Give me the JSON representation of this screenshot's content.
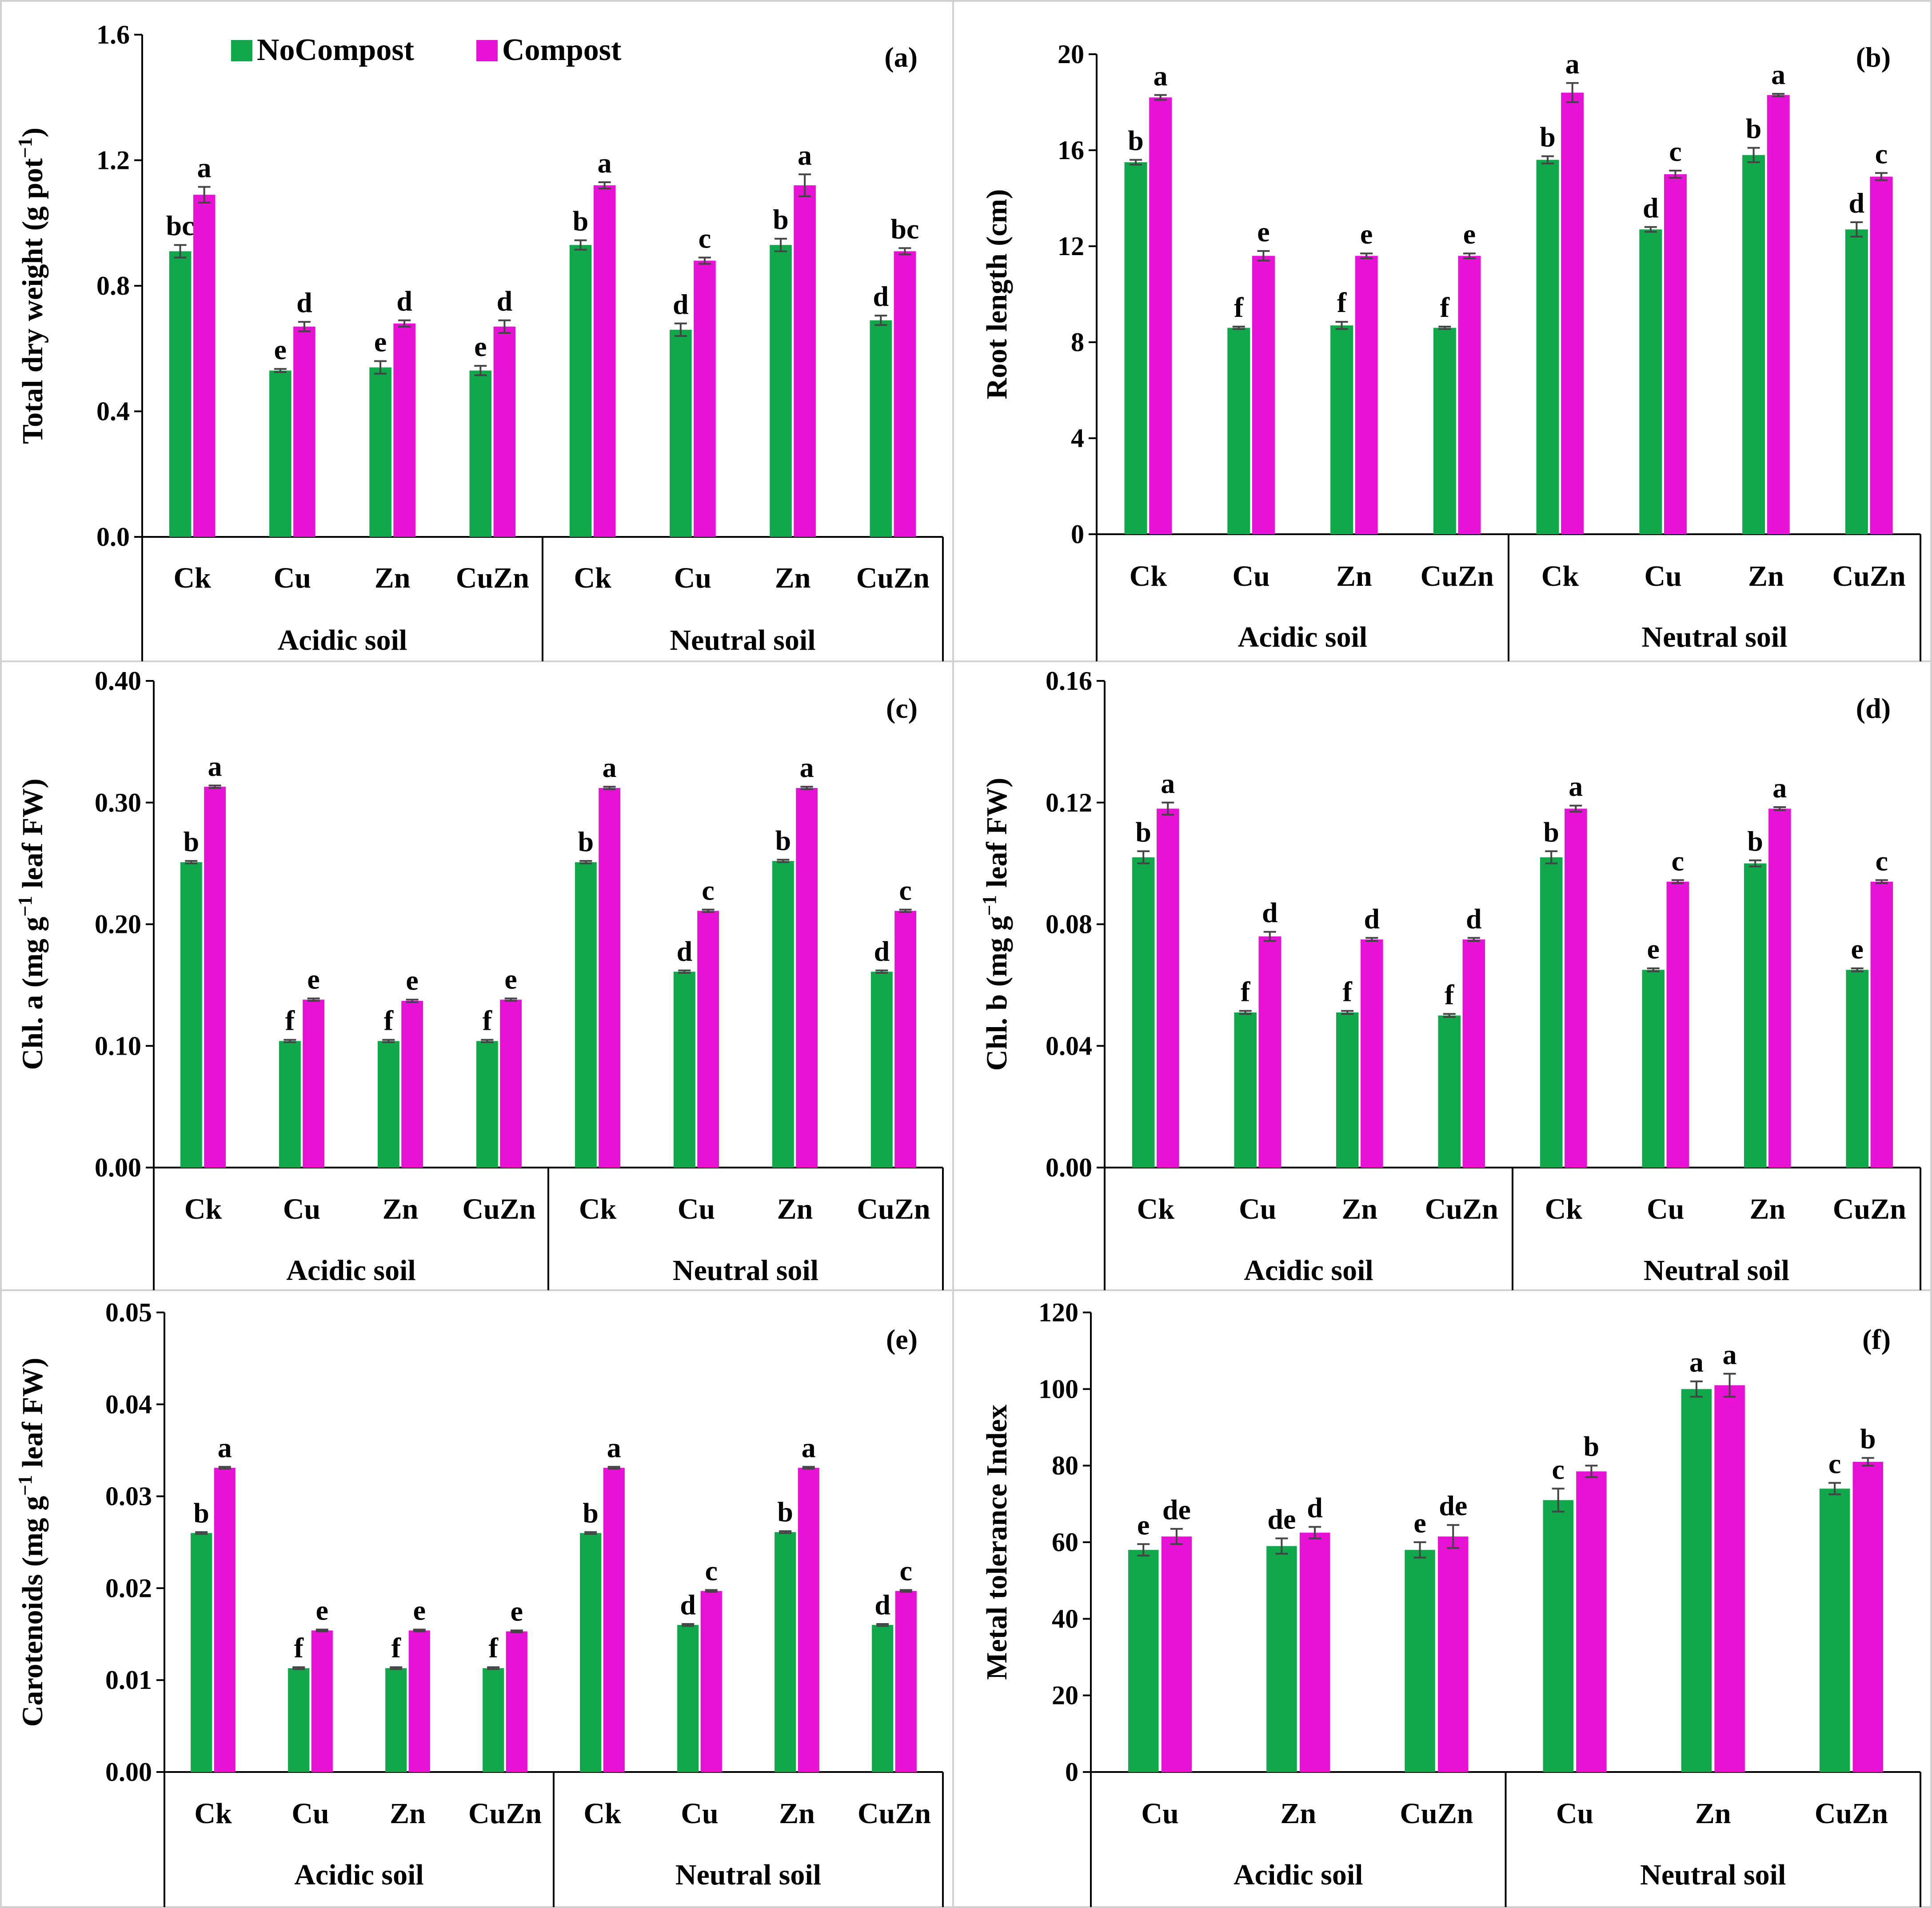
{
  "legend": {
    "series": [
      {
        "name": "NoCompost",
        "color": "#11a84b"
      },
      {
        "name": "Compost",
        "color": "#e812d6"
      }
    ]
  },
  "chart_data": [
    {
      "id": "a",
      "tag": "(a)",
      "type": "bar",
      "ylabel_parts": [
        "Total dry weight (g pot",
        "−1",
        ")"
      ],
      "yticks": [
        "0.0",
        "0.4",
        "0.8",
        "1.2",
        "1.6"
      ],
      "ylim": [
        0,
        1.6
      ],
      "groups": [
        {
          "label": "Acidic soil",
          "categories": [
            "Ck",
            "Cu",
            "Zn",
            "CuZn"
          ]
        },
        {
          "label": "Neutral soil",
          "categories": [
            "Ck",
            "Cu",
            "Zn",
            "CuZn"
          ]
        }
      ],
      "series": [
        {
          "name": "NoCompost",
          "values": [
            0.91,
            0.53,
            0.54,
            0.53,
            0.93,
            0.66,
            0.93,
            0.69
          ],
          "errors": [
            0.02,
            0.005,
            0.02,
            0.015,
            0.015,
            0.02,
            0.02,
            0.015
          ],
          "letters": [
            "bc",
            "e",
            "e",
            "e",
            "b",
            "d",
            "b",
            "d"
          ]
        },
        {
          "name": "Compost",
          "values": [
            1.09,
            0.67,
            0.68,
            0.67,
            1.12,
            0.88,
            1.12,
            0.91
          ],
          "errors": [
            0.025,
            0.015,
            0.01,
            0.02,
            0.01,
            0.01,
            0.035,
            0.01
          ],
          "letters": [
            "a",
            "d",
            "d",
            "d",
            "a",
            "c",
            "a",
            "bc"
          ]
        }
      ]
    },
    {
      "id": "b",
      "tag": "(b)",
      "type": "bar",
      "ylabel_parts": [
        "Root length (cm)"
      ],
      "yticks": [
        "0",
        "4",
        "8",
        "12",
        "16",
        "20"
      ],
      "ylim": [
        0,
        20
      ],
      "groups": [
        {
          "label": "Acidic soil",
          "categories": [
            "Ck",
            "Cu",
            "Zn",
            "CuZn"
          ]
        },
        {
          "label": "Neutral soil",
          "categories": [
            "Ck",
            "Cu",
            "Zn",
            "CuZn"
          ]
        }
      ],
      "series": [
        {
          "name": "NoCompost",
          "values": [
            15.5,
            8.6,
            8.7,
            8.6,
            15.6,
            12.7,
            15.8,
            12.7
          ],
          "errors": [
            0.1,
            0.05,
            0.15,
            0.05,
            0.15,
            0.1,
            0.3,
            0.3
          ],
          "letters": [
            "b",
            "f",
            "f",
            "f",
            "b",
            "d",
            "b",
            "d"
          ]
        },
        {
          "name": "Compost",
          "values": [
            18.2,
            11.6,
            11.6,
            11.6,
            18.4,
            15.0,
            18.3,
            14.9
          ],
          "errors": [
            0.1,
            0.2,
            0.1,
            0.1,
            0.4,
            0.15,
            0.05,
            0.15
          ],
          "letters": [
            "a",
            "e",
            "e",
            "e",
            "a",
            "c",
            "a",
            "c"
          ]
        }
      ]
    },
    {
      "id": "c",
      "tag": "(c)",
      "type": "bar",
      "ylabel_parts": [
        "Chl. a (mg g",
        "−1",
        " leaf FW)"
      ],
      "yticks": [
        "0.00",
        "0.10",
        "0.20",
        "0.30",
        "0.40"
      ],
      "ylim": [
        0,
        0.4
      ],
      "groups": [
        {
          "label": "Acidic soil",
          "categories": [
            "Ck",
            "Cu",
            "Zn",
            "CuZn"
          ]
        },
        {
          "label": "Neutral soil",
          "categories": [
            "Ck",
            "Cu",
            "Zn",
            "CuZn"
          ]
        }
      ],
      "series": [
        {
          "name": "NoCompost",
          "values": [
            0.251,
            0.104,
            0.104,
            0.104,
            0.251,
            0.161,
            0.252,
            0.161
          ],
          "errors": [
            0.001,
            0.001,
            0.001,
            0.001,
            0.001,
            0.001,
            0.001,
            0.001
          ],
          "letters": [
            "b",
            "f",
            "f",
            "f",
            "b",
            "d",
            "b",
            "d"
          ]
        },
        {
          "name": "Compost",
          "values": [
            0.313,
            0.138,
            0.137,
            0.138,
            0.312,
            0.211,
            0.312,
            0.211
          ],
          "errors": [
            0.001,
            0.001,
            0.001,
            0.001,
            0.001,
            0.001,
            0.001,
            0.001
          ],
          "letters": [
            "a",
            "e",
            "e",
            "e",
            "a",
            "c",
            "a",
            "c"
          ]
        }
      ]
    },
    {
      "id": "d",
      "tag": "(d)",
      "type": "bar",
      "ylabel_parts": [
        "Chl. b (mg g",
        "−1",
        " leaf FW)"
      ],
      "yticks": [
        "0.00",
        "0.04",
        "0.08",
        "0.12",
        "0.16"
      ],
      "ylim": [
        0,
        0.16
      ],
      "groups": [
        {
          "label": "Acidic soil",
          "categories": [
            "Ck",
            "Cu",
            "Zn",
            "CuZn"
          ]
        },
        {
          "label": "Neutral soil",
          "categories": [
            "Ck",
            "Cu",
            "Zn",
            "CuZn"
          ]
        }
      ],
      "series": [
        {
          "name": "NoCompost",
          "values": [
            0.102,
            0.051,
            0.051,
            0.05,
            0.102,
            0.065,
            0.1,
            0.065
          ],
          "errors": [
            0.002,
            0.0005,
            0.0005,
            0.0005,
            0.002,
            0.0005,
            0.001,
            0.0005
          ],
          "letters": [
            "b",
            "f",
            "f",
            "f",
            "b",
            "e",
            "b",
            "e"
          ]
        },
        {
          "name": "Compost",
          "values": [
            0.118,
            0.076,
            0.075,
            0.075,
            0.118,
            0.094,
            0.118,
            0.094
          ],
          "errors": [
            0.002,
            0.0015,
            0.0005,
            0.0005,
            0.001,
            0.0005,
            0.0005,
            0.0005
          ],
          "letters": [
            "a",
            "d",
            "d",
            "d",
            "a",
            "c",
            "a",
            "c"
          ]
        }
      ]
    },
    {
      "id": "e",
      "tag": "(e)",
      "type": "bar",
      "ylabel_parts": [
        "Carotenoids (mg g",
        "−1",
        " leaf FW)"
      ],
      "yticks": [
        "0.00",
        "0.01",
        "0.02",
        "0.03",
        "0.04",
        "0.05"
      ],
      "ylim": [
        0,
        0.05
      ],
      "groups": [
        {
          "label": "Acidic soil",
          "categories": [
            "Ck",
            "Cu",
            "Zn",
            "CuZn"
          ]
        },
        {
          "label": "Neutral soil",
          "categories": [
            "Ck",
            "Cu",
            "Zn",
            "CuZn"
          ]
        }
      ],
      "series": [
        {
          "name": "NoCompost",
          "values": [
            0.026,
            0.0113,
            0.0113,
            0.0113,
            0.026,
            0.016,
            0.0261,
            0.016
          ],
          "errors": [
            0.0001,
            0.0001,
            0.0001,
            0.0001,
            0.0001,
            0.0001,
            0.0001,
            0.0001
          ],
          "letters": [
            "b",
            "f",
            "f",
            "f",
            "b",
            "d",
            "b",
            "d"
          ]
        },
        {
          "name": "Compost",
          "values": [
            0.0331,
            0.0154,
            0.0154,
            0.0153,
            0.0331,
            0.0197,
            0.0331,
            0.0197
          ],
          "errors": [
            0.0001,
            0.0001,
            0.0001,
            0.0001,
            0.0001,
            0.0001,
            0.0001,
            0.0001
          ],
          "letters": [
            "a",
            "e",
            "e",
            "e",
            "a",
            "c",
            "a",
            "c"
          ]
        }
      ]
    },
    {
      "id": "f",
      "tag": "(f)",
      "type": "bar",
      "ylabel_parts": [
        "Metal tolerance Index"
      ],
      "yticks": [
        "0",
        "20",
        "40",
        "60",
        "80",
        "100",
        "120"
      ],
      "ylim": [
        0,
        120
      ],
      "groups": [
        {
          "label": "Acidic soil",
          "categories": [
            "Cu",
            "Zn",
            "CuZn"
          ]
        },
        {
          "label": "Neutral soil",
          "categories": [
            "Cu",
            "Zn",
            "CuZn"
          ]
        }
      ],
      "series": [
        {
          "name": "NoCompost",
          "values": [
            58,
            59,
            58,
            71,
            100,
            74
          ],
          "errors": [
            1.5,
            2,
            2,
            3,
            2,
            1.5
          ],
          "letters": [
            "e",
            "de",
            "e",
            "c",
            "a",
            "c"
          ]
        },
        {
          "name": "Compost",
          "values": [
            61.5,
            62.5,
            61.5,
            78.5,
            101,
            81
          ],
          "errors": [
            2,
            1.5,
            3,
            1.5,
            3,
            1
          ],
          "letters": [
            "de",
            "d",
            "de",
            "b",
            "a",
            "b"
          ]
        }
      ]
    }
  ]
}
